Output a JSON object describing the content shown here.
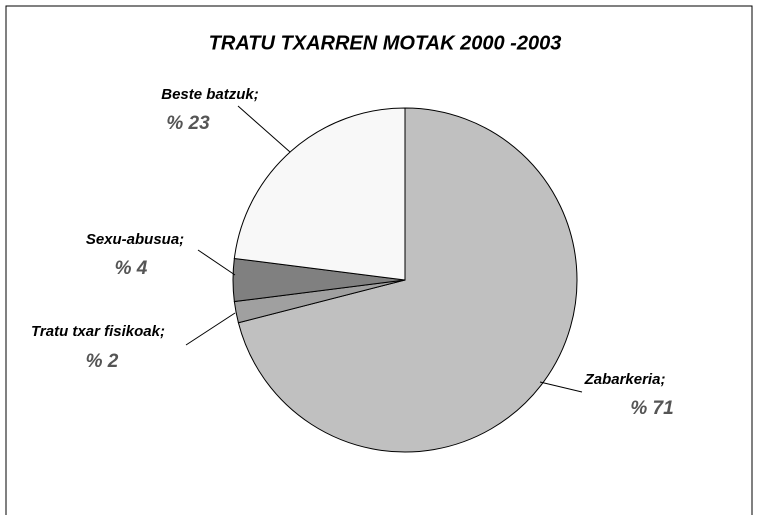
{
  "chart_data": {
    "type": "pie",
    "title": "TRATU TXARREN MOTAK 2000 -2003",
    "categories": [
      "Zabarkeria;",
      "Tratu txar fisikoak;",
      "Sexu-abusua;",
      "Beste batzuk;"
    ],
    "values": [
      71,
      2,
      4,
      23
    ],
    "value_labels": [
      "% 71",
      "% 2",
      "% 4",
      "% 23"
    ],
    "colors": [
      "#c0c0c0",
      "#a0a0a0",
      "#808080",
      "#f8f8f8"
    ]
  }
}
